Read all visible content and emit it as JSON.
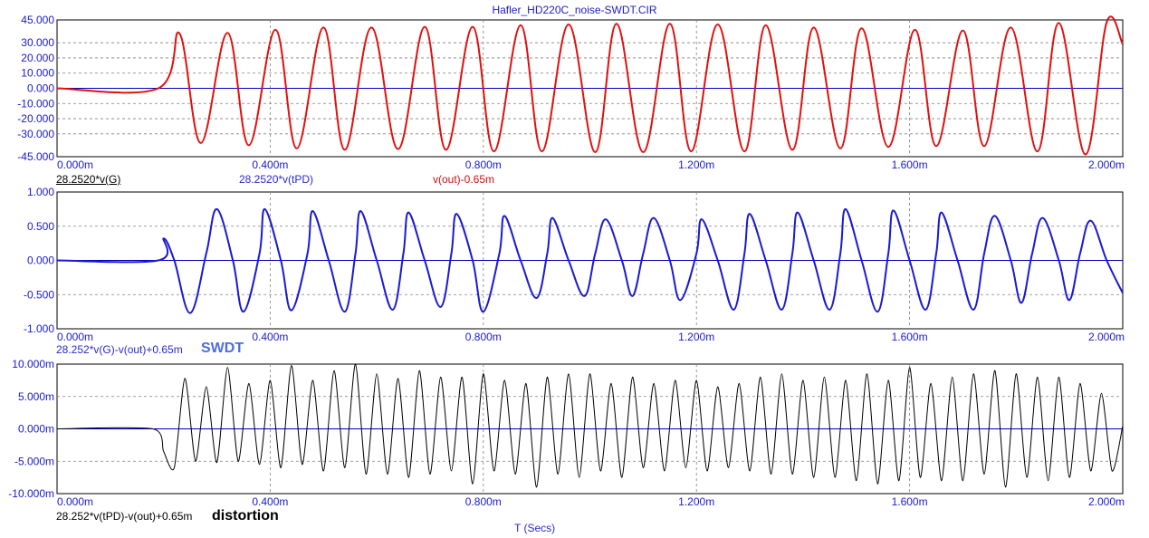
{
  "window": {
    "title": "Hafler_HD220C_noise-SWDT.CIR"
  },
  "colors": {
    "red_trace": "#e01010",
    "blue_trace": "#1a1ad0",
    "black_trace": "#000000",
    "axis_text": "#1a1ad0",
    "zero_line": "#0000c0",
    "grid": "#808080"
  },
  "x_axis": {
    "label": "T (Secs)",
    "ticks": [
      "0.000m",
      "0.400m",
      "0.800m",
      "1.200m",
      "1.600m",
      "2.000m"
    ]
  },
  "plots": {
    "top": {
      "trace_labels": [
        "28.2520*v(G)",
        "28.2520*v(tPD)",
        "v(out)-0.65m"
      ],
      "y_ticks": [
        "45.000",
        "30.000",
        "20.000",
        "10.000",
        "0.000",
        "-10.000",
        "-20.000",
        "-30.000",
        "-45.000"
      ]
    },
    "middle": {
      "trace_labels": [
        "28.252*v(G)-v(out)+0.65m"
      ],
      "annotation": "SWDT",
      "y_ticks": [
        "1.000",
        "0.500",
        "0.000",
        "-0.500",
        "-1.000"
      ]
    },
    "bottom": {
      "trace_labels": [
        "28.252*v(tPD)-v(out)+0.65m"
      ],
      "annotation": "distortion",
      "y_ticks": [
        "10.000m",
        "5.000m",
        "0.000m",
        "-5.000m",
        "-10.000m"
      ]
    }
  },
  "chart_data": [
    {
      "type": "line",
      "title": "Hafler_HD220C_noise-SWDT.CIR",
      "x_unit": "ms",
      "x_range": [
        0,
        2.0
      ],
      "ylim": [
        -45,
        45
      ],
      "grid": true,
      "series": [
        {
          "name": "v(out)-0.65m",
          "color": "#e01010",
          "signal_start_ms": 0.19,
          "period_ms": 0.0922,
          "points": [
            [
              0.0,
              0.0
            ],
            [
              0.19,
              0.0
            ],
            [
              0.23,
              36.0
            ],
            [
              0.27,
              -36.0
            ],
            [
              0.32,
              36.5
            ],
            [
              0.36,
              -37.5
            ],
            [
              0.41,
              38.5
            ],
            [
              0.45,
              -39.5
            ],
            [
              0.5,
              40.0
            ],
            [
              0.54,
              -40.5
            ],
            [
              0.59,
              40.0
            ],
            [
              0.64,
              -40.0
            ],
            [
              0.69,
              40.5
            ],
            [
              0.73,
              -40.5
            ],
            [
              0.78,
              40.5
            ],
            [
              0.82,
              -41.5
            ],
            [
              0.87,
              41.5
            ],
            [
              0.91,
              -41.5
            ],
            [
              0.96,
              42.0
            ],
            [
              1.01,
              -42.0
            ],
            [
              1.05,
              42.5
            ],
            [
              1.1,
              -42.0
            ],
            [
              1.15,
              42.5
            ],
            [
              1.19,
              -41.5
            ],
            [
              1.24,
              42.0
            ],
            [
              1.29,
              -41.5
            ],
            [
              1.33,
              41.5
            ],
            [
              1.38,
              -40.5
            ],
            [
              1.42,
              40.0
            ],
            [
              1.47,
              -39.5
            ],
            [
              1.51,
              39.5
            ],
            [
              1.56,
              -38.5
            ],
            [
              1.61,
              38.5
            ],
            [
              1.65,
              -38.0
            ],
            [
              1.7,
              38.0
            ],
            [
              1.74,
              -38.0
            ],
            [
              1.79,
              40.0
            ],
            [
              1.84,
              -41.5
            ],
            [
              1.88,
              43.0
            ],
            [
              1.93,
              -43.5
            ],
            [
              1.97,
              43.5
            ],
            [
              2.0,
              29.0
            ]
          ]
        },
        {
          "name": "28.2520*v(G)",
          "color": "#000000",
          "note_overlap": true
        },
        {
          "name": "28.2520*v(tPD)",
          "color": "#1a1ad0",
          "note_overlap": true
        }
      ]
    },
    {
      "type": "line",
      "x_unit": "ms",
      "x_range": [
        0,
        2.0
      ],
      "ylim": [
        -1.0,
        1.0
      ],
      "grid": true,
      "series": [
        {
          "name": "28.252*v(G)-v(out)+0.65m",
          "color": "#1a1ad0",
          "signal_start_ms": 0.19,
          "points": [
            [
              0.0,
              0.0
            ],
            [
              0.19,
              0.0
            ],
            [
              0.2,
              0.32
            ],
            [
              0.22,
              0.0
            ],
            [
              0.25,
              -0.77
            ],
            [
              0.28,
              0.1
            ],
            [
              0.3,
              0.75
            ],
            [
              0.33,
              0.0
            ],
            [
              0.35,
              -0.75
            ],
            [
              0.38,
              0.1
            ],
            [
              0.39,
              0.75
            ],
            [
              0.42,
              0.0
            ],
            [
              0.44,
              -0.73
            ],
            [
              0.47,
              0.1
            ],
            [
              0.48,
              0.72
            ],
            [
              0.51,
              0.0
            ],
            [
              0.54,
              -0.75
            ],
            [
              0.56,
              0.1
            ],
            [
              0.57,
              0.72
            ],
            [
              0.6,
              0.0
            ],
            [
              0.63,
              -0.72
            ],
            [
              0.65,
              0.1
            ],
            [
              0.66,
              0.7
            ],
            [
              0.69,
              0.0
            ],
            [
              0.72,
              -0.68
            ],
            [
              0.74,
              0.1
            ],
            [
              0.75,
              0.68
            ],
            [
              0.78,
              0.0
            ],
            [
              0.8,
              -0.75
            ],
            [
              0.83,
              0.1
            ],
            [
              0.84,
              0.65
            ],
            [
              0.87,
              0.0
            ],
            [
              0.9,
              -0.55
            ],
            [
              0.92,
              0.1
            ],
            [
              0.93,
              0.62
            ],
            [
              0.96,
              0.0
            ],
            [
              0.99,
              -0.52
            ],
            [
              1.01,
              0.1
            ],
            [
              1.03,
              0.6
            ],
            [
              1.06,
              0.0
            ],
            [
              1.08,
              -0.52
            ],
            [
              1.1,
              0.1
            ],
            [
              1.12,
              0.62
            ],
            [
              1.15,
              0.0
            ],
            [
              1.17,
              -0.58
            ],
            [
              1.2,
              0.1
            ],
            [
              1.21,
              0.6
            ],
            [
              1.24,
              0.0
            ],
            [
              1.27,
              -0.72
            ],
            [
              1.29,
              0.1
            ],
            [
              1.3,
              0.68
            ],
            [
              1.33,
              0.0
            ],
            [
              1.36,
              -0.72
            ],
            [
              1.38,
              0.1
            ],
            [
              1.39,
              0.7
            ],
            [
              1.42,
              0.0
            ],
            [
              1.45,
              -0.72
            ],
            [
              1.47,
              0.1
            ],
            [
              1.48,
              0.75
            ],
            [
              1.51,
              0.0
            ],
            [
              1.54,
              -0.75
            ],
            [
              1.56,
              0.1
            ],
            [
              1.57,
              0.73
            ],
            [
              1.6,
              0.0
            ],
            [
              1.63,
              -0.72
            ],
            [
              1.65,
              0.1
            ],
            [
              1.66,
              0.7
            ],
            [
              1.69,
              0.0
            ],
            [
              1.72,
              -0.72
            ],
            [
              1.74,
              0.1
            ],
            [
              1.76,
              0.65
            ],
            [
              1.79,
              0.0
            ],
            [
              1.81,
              -0.62
            ],
            [
              1.83,
              0.1
            ],
            [
              1.85,
              0.62
            ],
            [
              1.88,
              0.0
            ],
            [
              1.9,
              -0.58
            ],
            [
              1.92,
              0.1
            ],
            [
              1.94,
              0.58
            ],
            [
              1.97,
              0.0
            ],
            [
              2.0,
              -0.48
            ]
          ]
        }
      ]
    },
    {
      "type": "line",
      "x_unit": "ms",
      "x_range": [
        0,
        2.0
      ],
      "ylim": [
        -10.0,
        10.0
      ],
      "y_unit": "m",
      "grid": true,
      "series": [
        {
          "name": "28.252*v(tPD)-v(out)+0.65m",
          "color": "#000000",
          "signal_start_ms": 0.18,
          "points": [
            [
              0.0,
              0.0
            ],
            [
              0.18,
              0.0
            ],
            [
              0.2,
              -3.5
            ],
            [
              0.22,
              -6.0
            ],
            [
              0.24,
              7.8
            ],
            [
              0.26,
              -5.0
            ],
            [
              0.28,
              6.5
            ],
            [
              0.3,
              -5.2
            ],
            [
              0.32,
              9.5
            ],
            [
              0.34,
              -5.0
            ],
            [
              0.36,
              7.0
            ],
            [
              0.38,
              -5.5
            ],
            [
              0.4,
              7.5
            ],
            [
              0.42,
              -6.0
            ],
            [
              0.44,
              9.8
            ],
            [
              0.46,
              -5.5
            ],
            [
              0.48,
              7.5
            ],
            [
              0.5,
              -6.5
            ],
            [
              0.52,
              9.0
            ],
            [
              0.54,
              -6.0
            ],
            [
              0.56,
              10.0
            ],
            [
              0.58,
              -7.0
            ],
            [
              0.6,
              8.5
            ],
            [
              0.62,
              -7.0
            ],
            [
              0.64,
              7.8
            ],
            [
              0.66,
              -7.5
            ],
            [
              0.68,
              9.0
            ],
            [
              0.7,
              -7.0
            ],
            [
              0.72,
              8.0
            ],
            [
              0.74,
              -6.5
            ],
            [
              0.76,
              8.0
            ],
            [
              0.78,
              -8.5
            ],
            [
              0.8,
              8.5
            ],
            [
              0.82,
              -6.5
            ],
            [
              0.84,
              7.5
            ],
            [
              0.86,
              -7.0
            ],
            [
              0.88,
              7.0
            ],
            [
              0.9,
              -9.0
            ],
            [
              0.92,
              8.0
            ],
            [
              0.94,
              -7.0
            ],
            [
              0.96,
              8.5
            ],
            [
              0.98,
              -7.5
            ],
            [
              1.0,
              8.5
            ],
            [
              1.02,
              -6.5
            ],
            [
              1.04,
              7.0
            ],
            [
              1.06,
              -7.5
            ],
            [
              1.08,
              8.0
            ],
            [
              1.1,
              -6.0
            ],
            [
              1.12,
              7.0
            ],
            [
              1.14,
              -6.5
            ],
            [
              1.16,
              7.5
            ],
            [
              1.18,
              -6.0
            ],
            [
              1.2,
              7.5
            ],
            [
              1.22,
              -6.5
            ],
            [
              1.24,
              6.5
            ],
            [
              1.26,
              -6.0
            ],
            [
              1.28,
              7.0
            ],
            [
              1.3,
              -6.5
            ],
            [
              1.32,
              8.0
            ],
            [
              1.34,
              -7.0
            ],
            [
              1.36,
              8.5
            ],
            [
              1.38,
              -7.0
            ],
            [
              1.4,
              7.5
            ],
            [
              1.42,
              -7.5
            ],
            [
              1.44,
              8.0
            ],
            [
              1.46,
              -7.5
            ],
            [
              1.48,
              7.5
            ],
            [
              1.5,
              -8.0
            ],
            [
              1.52,
              8.5
            ],
            [
              1.54,
              -8.5
            ],
            [
              1.56,
              7.5
            ],
            [
              1.58,
              -8.0
            ],
            [
              1.6,
              9.5
            ],
            [
              1.62,
              -7.5
            ],
            [
              1.64,
              7.0
            ],
            [
              1.66,
              -8.0
            ],
            [
              1.68,
              8.0
            ],
            [
              1.7,
              -8.0
            ],
            [
              1.72,
              8.5
            ],
            [
              1.74,
              -7.0
            ],
            [
              1.76,
              9.0
            ],
            [
              1.78,
              -9.0
            ],
            [
              1.8,
              8.5
            ],
            [
              1.82,
              -7.5
            ],
            [
              1.84,
              8.0
            ],
            [
              1.86,
              -8.0
            ],
            [
              1.88,
              8.0
            ],
            [
              1.9,
              -7.5
            ],
            [
              1.92,
              7.0
            ],
            [
              1.94,
              -6.5
            ],
            [
              1.96,
              5.5
            ],
            [
              1.98,
              -6.5
            ],
            [
              2.0,
              0.5
            ]
          ]
        }
      ]
    }
  ]
}
